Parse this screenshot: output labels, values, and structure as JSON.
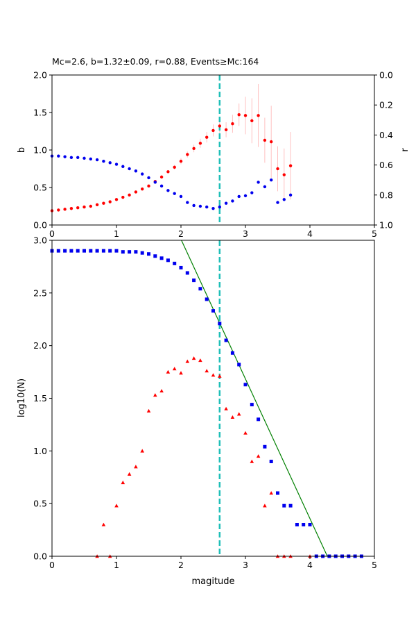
{
  "colors": {
    "b_series": "#ff0000",
    "r_series": "#0000ee",
    "error_bars": "#ffc0c0",
    "mc_line": "#1fbfb8",
    "fit_line": "#008000",
    "cumulative": "#0000ee",
    "incremental": "#ff0000"
  },
  "chart_data": [
    {
      "type": "scatter",
      "title": "Mc=2.6, b=1.32±0.09, r=0.88, Events≥Mc:164",
      "xlabel": "",
      "ylabel": "b",
      "y2label": "r",
      "xlim": [
        0,
        5
      ],
      "ylim": [
        0,
        2.0
      ],
      "y2lim": [
        1.0,
        0.0
      ],
      "x_ticks": [
        "0",
        "1",
        "2",
        "3",
        "4",
        "5"
      ],
      "y_ticks": [
        "0.0",
        "0.5",
        "1.0",
        "1.5",
        "2.0"
      ],
      "y2_ticks": [
        "0.0",
        "0.2",
        "0.4",
        "0.6",
        "0.8",
        "1.0"
      ],
      "mc": 2.6,
      "series": [
        {
          "name": "b-value",
          "axis": "left",
          "x": [
            0.0,
            0.1,
            0.2,
            0.3,
            0.4,
            0.5,
            0.6,
            0.7,
            0.8,
            0.9,
            1.0,
            1.1,
            1.2,
            1.3,
            1.4,
            1.5,
            1.6,
            1.7,
            1.8,
            1.9,
            2.0,
            2.1,
            2.2,
            2.3,
            2.4,
            2.5,
            2.6,
            2.7,
            2.8,
            2.9,
            3.0,
            3.1,
            3.2,
            3.3,
            3.4,
            3.5,
            3.6,
            3.7
          ],
          "values": [
            0.19,
            0.2,
            0.21,
            0.22,
            0.23,
            0.24,
            0.25,
            0.27,
            0.29,
            0.31,
            0.34,
            0.37,
            0.4,
            0.44,
            0.48,
            0.52,
            0.58,
            0.64,
            0.71,
            0.77,
            0.85,
            0.94,
            1.02,
            1.09,
            1.17,
            1.26,
            1.32,
            1.27,
            1.35,
            1.47,
            1.46,
            1.39,
            1.46,
            1.13,
            1.11,
            0.75,
            0.67,
            0.79
          ],
          "errors": [
            0,
            0,
            0,
            0,
            0,
            0,
            0,
            0,
            0,
            0,
            0,
            0,
            0,
            0,
            0,
            0,
            0,
            0,
            0.02,
            0.03,
            0.04,
            0.04,
            0.05,
            0.06,
            0.07,
            0.08,
            0.09,
            0.1,
            0.12,
            0.15,
            0.25,
            0.3,
            0.42,
            0.3,
            0.48,
            0.3,
            0.35,
            0.45
          ]
        },
        {
          "name": "r",
          "axis": "right",
          "x": [
            0.0,
            0.1,
            0.2,
            0.3,
            0.4,
            0.5,
            0.6,
            0.7,
            0.8,
            0.9,
            1.0,
            1.1,
            1.2,
            1.3,
            1.4,
            1.5,
            1.6,
            1.7,
            1.8,
            1.9,
            2.0,
            2.1,
            2.2,
            2.3,
            2.4,
            2.5,
            2.6,
            2.7,
            2.8,
            2.9,
            3.0,
            3.1,
            3.2,
            3.3,
            3.4,
            3.5,
            3.6,
            3.7
          ],
          "values": [
            0.54,
            0.54,
            0.545,
            0.55,
            0.55,
            0.555,
            0.56,
            0.565,
            0.575,
            0.585,
            0.595,
            0.61,
            0.625,
            0.64,
            0.66,
            0.685,
            0.715,
            0.74,
            0.77,
            0.79,
            0.81,
            0.85,
            0.87,
            0.875,
            0.88,
            0.89,
            0.88,
            0.855,
            0.84,
            0.81,
            0.805,
            0.785,
            0.715,
            0.745,
            0.7,
            0.85,
            0.83,
            0.8
          ]
        }
      ]
    },
    {
      "type": "scatter",
      "title": "",
      "xlabel": "magitude",
      "ylabel": "log10(N)",
      "xlim": [
        0,
        5
      ],
      "ylim": [
        0,
        3.0
      ],
      "x_ticks": [
        "0",
        "1",
        "2",
        "3",
        "4",
        "5"
      ],
      "y_ticks": [
        "0.0",
        "0.5",
        "1.0",
        "1.5",
        "2.0",
        "2.5",
        "3.0"
      ],
      "mc": 2.6,
      "fit_line": {
        "x": [
          2.0,
          4.27
        ],
        "y": [
          3.01,
          0.0
        ]
      },
      "series": [
        {
          "name": "cumulative",
          "marker": "square",
          "x": [
            0.0,
            0.1,
            0.2,
            0.3,
            0.4,
            0.5,
            0.6,
            0.7,
            0.8,
            0.9,
            1.0,
            1.1,
            1.2,
            1.3,
            1.4,
            1.5,
            1.6,
            1.7,
            1.8,
            1.9,
            2.0,
            2.1,
            2.2,
            2.3,
            2.4,
            2.5,
            2.6,
            2.7,
            2.8,
            2.9,
            3.0,
            3.1,
            3.2,
            3.3,
            3.4,
            3.5,
            3.6,
            3.7,
            3.8,
            3.9,
            4.0,
            4.1,
            4.2,
            4.3,
            4.4,
            4.5,
            4.6,
            4.7,
            4.8
          ],
          "values": [
            2.9,
            2.9,
            2.9,
            2.9,
            2.9,
            2.9,
            2.9,
            2.9,
            2.9,
            2.9,
            2.9,
            2.89,
            2.89,
            2.89,
            2.88,
            2.87,
            2.85,
            2.83,
            2.81,
            2.78,
            2.74,
            2.69,
            2.62,
            2.54,
            2.44,
            2.33,
            2.21,
            2.05,
            1.93,
            1.82,
            1.63,
            1.44,
            1.3,
            1.04,
            0.9,
            0.6,
            0.48,
            0.48,
            0.3,
            0.3,
            0.3,
            0.0,
            0.0,
            0.0,
            0.0,
            0.0,
            0.0,
            0.0,
            0.0
          ]
        },
        {
          "name": "incremental",
          "marker": "triangle",
          "x": [
            0.7,
            0.8,
            0.9,
            1.0,
            1.1,
            1.2,
            1.3,
            1.4,
            1.5,
            1.6,
            1.7,
            1.8,
            1.9,
            2.0,
            2.1,
            2.2,
            2.3,
            2.4,
            2.5,
            2.6,
            2.7,
            2.8,
            2.9,
            3.0,
            3.1,
            3.2,
            3.3,
            3.4,
            3.5,
            3.6,
            3.7,
            4.0
          ],
          "values": [
            0.0,
            0.3,
            0.0,
            0.48,
            0.7,
            0.78,
            0.85,
            1.0,
            1.38,
            1.53,
            1.57,
            1.75,
            1.78,
            1.74,
            1.85,
            1.88,
            1.86,
            1.76,
            1.72,
            1.71,
            1.4,
            1.32,
            1.35,
            1.17,
            0.9,
            0.95,
            0.48,
            0.6,
            0.0,
            0.0,
            0.0,
            0.0
          ]
        }
      ]
    }
  ]
}
